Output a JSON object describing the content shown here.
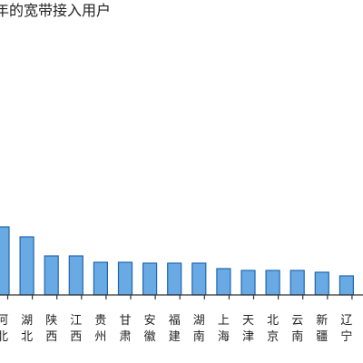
{
  "chart_data": {
    "type": "bar",
    "title": "年的宽带接入用户",
    "categories": [
      [
        "河",
        "北"
      ],
      [
        "湖",
        "北"
      ],
      [
        "陕",
        "西"
      ],
      [
        "江",
        "西"
      ],
      [
        "贵",
        "州"
      ],
      [
        "甘",
        "肃"
      ],
      [
        "安",
        "徽"
      ],
      [
        "福",
        "建"
      ],
      [
        "湖",
        "南"
      ],
      [
        "上",
        "海"
      ],
      [
        "天",
        "津"
      ],
      [
        "北",
        "京"
      ],
      [
        "云",
        "南"
      ],
      [
        "新",
        "疆"
      ],
      [
        "辽",
        "宁"
      ]
    ],
    "values": [
      75,
      64,
      43,
      43,
      36,
      36,
      35,
      35,
      35,
      29,
      27,
      27,
      27,
      25,
      21
    ],
    "ylim": [
      0,
      100
    ],
    "colors": {
      "bar_fill": "#6aaae4",
      "bar_stroke": "#1f66b0"
    }
  }
}
